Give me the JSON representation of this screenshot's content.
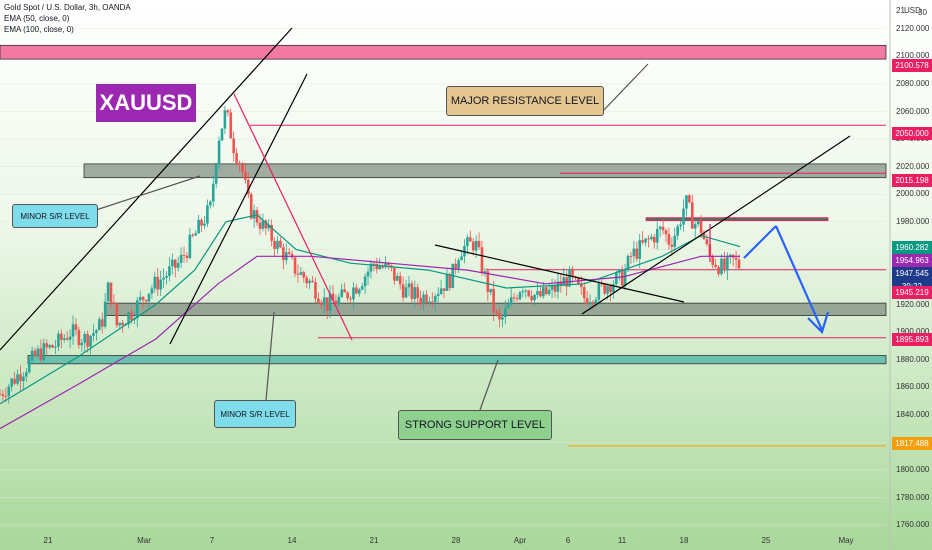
{
  "legend": {
    "title": "Gold Spot / U.S. Dollar, 3h, OANDA",
    "ema50": "EMA (50, close, 0)",
    "ema100": "EMA (100, close, 0)"
  },
  "badge": "XAUUSD",
  "callouts": {
    "major": "MAJOR RESISTANCE LEVEL",
    "minor_top": "MINOR S/R LEVEL",
    "minor_bottom": "MINOR S/R LEVEL",
    "strong": "STRONG SUPPORT LEVEL"
  },
  "axis": {
    "currency": "USD",
    "top_tick": "21",
    "top_tick_right": "30",
    "y_ticks": [
      "2120.000",
      "2100.000",
      "2080.000",
      "2060.000",
      "2040.000",
      "2020.000",
      "2000.000",
      "1980.000",
      "1960.000",
      "1940.000",
      "1920.000",
      "1900.000",
      "1880.000",
      "1860.000",
      "1840.000",
      "1820.000",
      "1800.000",
      "1780.000",
      "1760.000"
    ],
    "x_ticks": [
      "21",
      "Mar",
      "7",
      "14",
      "21",
      "28",
      "Apr",
      "6",
      "11",
      "18",
      "25",
      "May"
    ]
  },
  "price_labels": [
    {
      "text": "2100.578",
      "color": "#e91e63"
    },
    {
      "text": "2050.000",
      "color": "#e91e63"
    },
    {
      "text": "2015.198",
      "color": "#e91e63"
    },
    {
      "text": "1960.282",
      "color": "#089981"
    },
    {
      "text": "1954.963",
      "color": "#9c27b0"
    },
    {
      "text": "1947.545",
      "color": "#1e3a8a"
    },
    {
      "text": "39:22",
      "color": "#1e3a8a"
    },
    {
      "text": "1945.219",
      "color": "#e91e63"
    },
    {
      "text": "1895.893",
      "color": "#e91e63"
    },
    {
      "text": "1817.488",
      "color": "#f59e0b"
    }
  ],
  "chart_data": {
    "type": "candlestick",
    "symbol": "XAUUSD",
    "title": "Gold Spot / U.S. Dollar, 3h, OANDA",
    "ylim": [
      1750,
      2130
    ],
    "close_path": [
      [
        0,
        1855
      ],
      [
        5,
        1870
      ],
      [
        10,
        1885
      ],
      [
        14,
        1890
      ],
      [
        18,
        1900
      ],
      [
        22,
        1895
      ],
      [
        26,
        1905
      ],
      [
        28,
        1935
      ],
      [
        30,
        1905
      ],
      [
        34,
        1915
      ],
      [
        38,
        1930
      ],
      [
        42,
        1940
      ],
      [
        46,
        1950
      ],
      [
        50,
        1970
      ],
      [
        54,
        1990
      ],
      [
        56,
        2040
      ],
      [
        58,
        2060
      ],
      [
        60,
        2035
      ],
      [
        62,
        2020
      ],
      [
        64,
        1990
      ],
      [
        68,
        1975
      ],
      [
        72,
        1960
      ],
      [
        76,
        1945
      ],
      [
        80,
        1935
      ],
      [
        84,
        1920
      ],
      [
        88,
        1925
      ],
      [
        92,
        1935
      ],
      [
        96,
        1950
      ],
      [
        100,
        1945
      ],
      [
        104,
        1930
      ],
      [
        108,
        1925
      ],
      [
        112,
        1930
      ],
      [
        116,
        1940
      ],
      [
        118,
        1960
      ],
      [
        122,
        1965
      ],
      [
        124,
        1945
      ],
      [
        126,
        1925
      ],
      [
        128,
        1905
      ],
      [
        130,
        1915
      ],
      [
        134,
        1935
      ],
      [
        138,
        1925
      ],
      [
        142,
        1930
      ],
      [
        146,
        1940
      ],
      [
        150,
        1925
      ],
      [
        154,
        1930
      ],
      [
        156,
        1935
      ],
      [
        160,
        1940
      ],
      [
        162,
        1955
      ],
      [
        166,
        1965
      ],
      [
        170,
        1975
      ],
      [
        172,
        1965
      ],
      [
        174,
        1975
      ],
      [
        176,
        1995
      ],
      [
        178,
        1980
      ],
      [
        180,
        1975
      ],
      [
        182,
        1955
      ],
      [
        184,
        1950
      ],
      [
        186,
        1945
      ],
      [
        188,
        1952
      ],
      [
        190,
        1948
      ]
    ],
    "ema50": [
      [
        0,
        1848
      ],
      [
        20,
        1882
      ],
      [
        40,
        1920
      ],
      [
        50,
        1945
      ],
      [
        58,
        1980
      ],
      [
        66,
        1985
      ],
      [
        76,
        1960
      ],
      [
        90,
        1950
      ],
      [
        110,
        1945
      ],
      [
        130,
        1932
      ],
      [
        150,
        1935
      ],
      [
        170,
        1955
      ],
      [
        180,
        1970
      ],
      [
        190,
        1962
      ]
    ],
    "ema100": [
      [
        0,
        1830
      ],
      [
        20,
        1862
      ],
      [
        40,
        1895
      ],
      [
        56,
        1935
      ],
      [
        66,
        1955
      ],
      [
        80,
        1955
      ],
      [
        100,
        1950
      ],
      [
        120,
        1945
      ],
      [
        140,
        1935
      ],
      [
        160,
        1940
      ],
      [
        180,
        1955
      ],
      [
        190,
        1955
      ]
    ],
    "levels": [
      {
        "name": "major resistance",
        "value": 2100.578
      },
      {
        "name": "resistance",
        "value": 2050.0
      },
      {
        "name": "resistance",
        "value": 2015.198
      },
      {
        "name": "support",
        "value": 1945.219
      },
      {
        "name": "support",
        "value": 1895.893
      },
      {
        "name": "support",
        "value": 1817.488
      }
    ],
    "zones": [
      {
        "name": "major resistance zone",
        "from": 2098,
        "to": 2108
      },
      {
        "name": "minor s/r zone upper",
        "from": 2012,
        "to": 2022
      },
      {
        "name": "minor s/r zone lower",
        "from": 1912,
        "to": 1921
      },
      {
        "name": "strong support zone",
        "from": 1877,
        "to": 1883
      }
    ],
    "colors": {
      "bull": "#26a69a",
      "bear": "#ef5350",
      "ema50": "#089981",
      "ema100": "#9c27b0",
      "level": "#e91e63",
      "projection": "#2962ff",
      "trend": "#000000"
    }
  }
}
